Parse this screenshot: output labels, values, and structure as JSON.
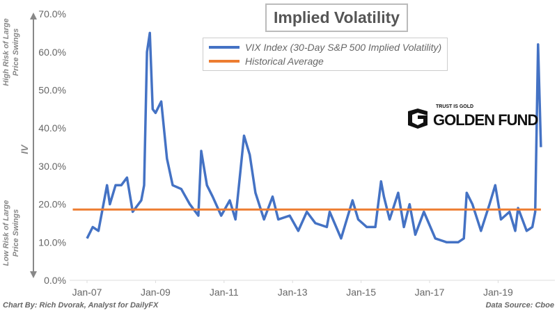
{
  "chart_data": {
    "type": "line",
    "title": "Implied Volatility",
    "ylabel": "IV",
    "ylabel_top": "High Risk of Large Price Swings",
    "ylabel_bottom": "Low Risk of Large Price Swings",
    "ylim": [
      0,
      70
    ],
    "yticks": [
      "0.0%",
      "10.0%",
      "20.0%",
      "30.0%",
      "40.0%",
      "50.0%",
      "60.0%",
      "70.0%"
    ],
    "xticks": [
      "Jan-07",
      "Jan-09",
      "Jan-11",
      "Jan-13",
      "Jan-15",
      "Jan-17",
      "Jan-19"
    ],
    "xlim": [
      "2006-08",
      "2020-04"
    ],
    "grid": false,
    "legend_position": "top-center",
    "series": [
      {
        "name": "VIX Index (30-Day S&P 500 Implied Volatility)",
        "color": "#4472c4",
        "x": [
          "2007-01",
          "2007-03",
          "2007-05",
          "2007-08",
          "2007-09",
          "2007-11",
          "2008-01",
          "2008-03",
          "2008-05",
          "2008-08",
          "2008-09",
          "2008-10",
          "2008-11",
          "2008-12",
          "2009-01",
          "2009-03",
          "2009-05",
          "2009-07",
          "2009-10",
          "2010-01",
          "2010-04",
          "2010-05",
          "2010-07",
          "2010-09",
          "2010-12",
          "2011-03",
          "2011-05",
          "2011-08",
          "2011-10",
          "2011-12",
          "2012-03",
          "2012-06",
          "2012-08",
          "2012-12",
          "2013-03",
          "2013-06",
          "2013-09",
          "2014-01",
          "2014-02",
          "2014-06",
          "2014-10",
          "2014-12",
          "2015-03",
          "2015-06",
          "2015-08",
          "2015-09",
          "2015-11",
          "2016-02",
          "2016-04",
          "2016-06",
          "2016-08",
          "2016-11",
          "2017-03",
          "2017-07",
          "2017-11",
          "2018-01",
          "2018-02",
          "2018-04",
          "2018-07",
          "2018-10",
          "2018-12",
          "2019-02",
          "2019-05",
          "2019-07",
          "2019-08",
          "2019-11",
          "2020-01",
          "2020-02",
          "2020-03",
          "2020-04"
        ],
        "values": [
          11,
          14,
          13,
          25,
          20,
          25,
          25,
          27,
          18,
          21,
          25,
          60,
          65,
          45,
          44,
          47,
          32,
          25,
          24,
          20,
          17,
          34,
          25,
          22,
          17,
          21,
          16,
          38,
          33,
          23,
          16,
          22,
          16,
          17,
          13,
          18,
          15,
          14,
          18,
          11,
          21,
          16,
          14,
          14,
          26,
          22,
          16,
          23,
          14,
          20,
          12,
          18,
          11,
          10,
          10,
          11,
          23,
          20,
          13,
          20,
          25,
          16,
          18,
          13,
          19,
          13,
          14,
          18,
          62,
          35
        ]
      },
      {
        "name": "Historical Average",
        "color": "#ed7d31",
        "x": [
          "2006-08",
          "2020-04"
        ],
        "values": [
          18.6,
          18.6
        ]
      }
    ]
  },
  "footer": {
    "credit": "Chart By: Rich Dvorak, Analyst for DailyFX",
    "source": "Data Source: Cboe"
  },
  "logo": {
    "tagline": "TRUST IS GOLD",
    "name": "GOLDEN FUND"
  }
}
